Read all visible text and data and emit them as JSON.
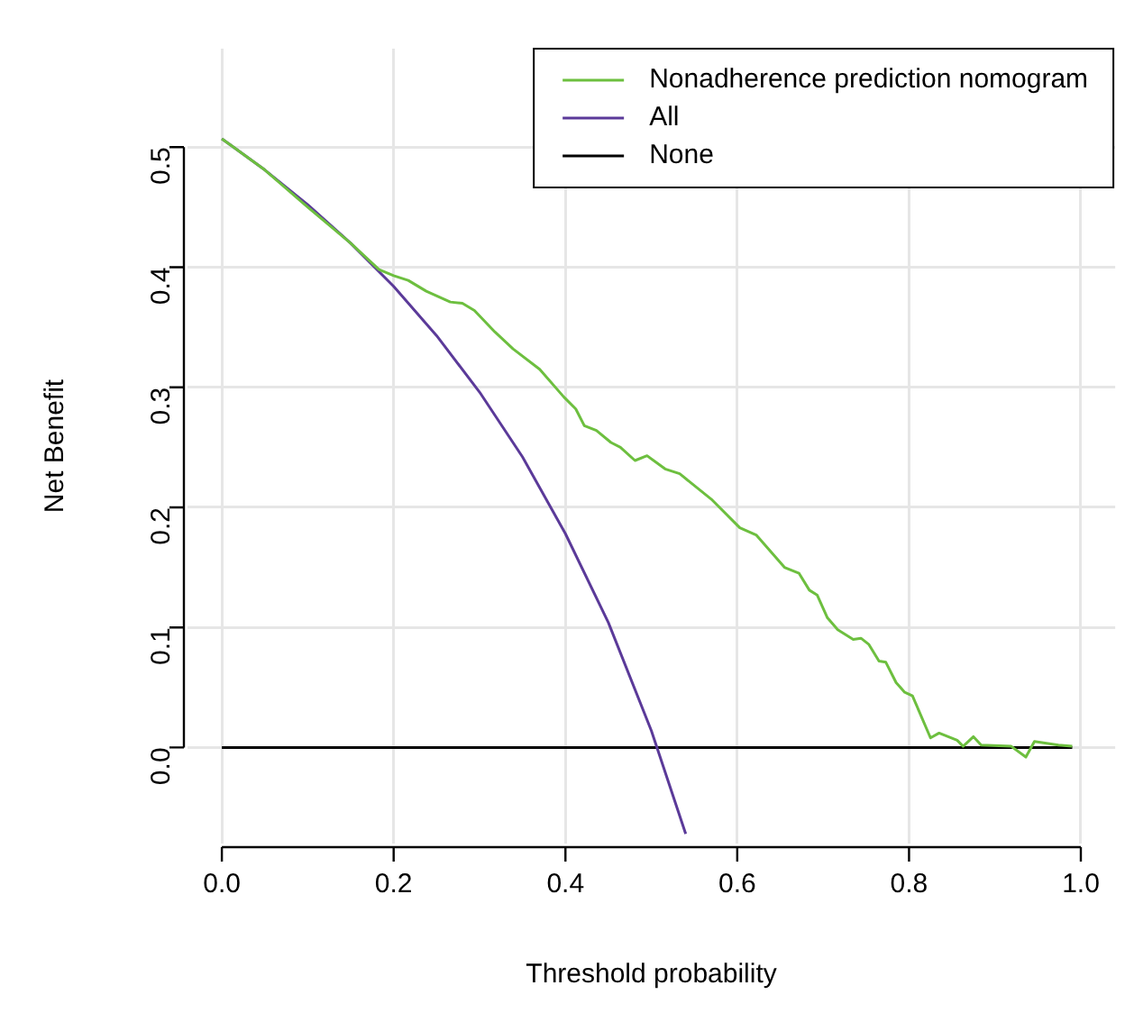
{
  "chart_data": {
    "type": "line",
    "xlabel": "Threshold probability",
    "ylabel": "Net Benefit",
    "xlim": [
      -0.04,
      1.04
    ],
    "ylim": [
      -0.08,
      0.582
    ],
    "xticks": [
      {
        "value": 0,
        "label": "0.0"
      },
      {
        "value": 0.2,
        "label": "0.2"
      },
      {
        "value": 0.4,
        "label": "0.4"
      },
      {
        "value": 0.6,
        "label": "0.6"
      },
      {
        "value": 0.8,
        "label": "0.8"
      },
      {
        "value": 1,
        "label": "1.0"
      }
    ],
    "yticks": [
      {
        "value": 0,
        "label": "0.0"
      },
      {
        "value": 0.1,
        "label": "0.1"
      },
      {
        "value": 0.2,
        "label": "0.2"
      },
      {
        "value": 0.3,
        "label": "0.3"
      },
      {
        "value": 0.4,
        "label": "0.4"
      },
      {
        "value": 0.5,
        "label": "0.5"
      }
    ],
    "grid": true,
    "legend": "top right",
    "marker": "none",
    "line_style": "solid",
    "series": [
      {
        "name": "Nonadherence prediction nomogram",
        "color": "#6dbf3f",
        "x": [
          0,
          0.05,
          0.1,
          0.15,
          0.183,
          0.2,
          0.217,
          0.238,
          0.266,
          0.28,
          0.294,
          0.318,
          0.339,
          0.37,
          0.398,
          0.412,
          0.422,
          0.436,
          0.453,
          0.464,
          0.481,
          0.495,
          0.516,
          0.533,
          0.571,
          0.603,
          0.622,
          0.655,
          0.672,
          0.684,
          0.693,
          0.705,
          0.717,
          0.735,
          0.744,
          0.753,
          0.765,
          0.773,
          0.785,
          0.795,
          0.804,
          0.825,
          0.835,
          0.856,
          0.863,
          0.875,
          0.884,
          0.919,
          0.936,
          0.946,
          0.974,
          0.99
        ],
        "values": [
          0.507,
          0.481,
          0.45,
          0.42,
          0.398,
          0.393,
          0.389,
          0.38,
          0.371,
          0.37,
          0.364,
          0.346,
          0.332,
          0.315,
          0.292,
          0.282,
          0.268,
          0.264,
          0.254,
          0.25,
          0.239,
          0.243,
          0.232,
          0.228,
          0.206,
          0.183,
          0.177,
          0.15,
          0.145,
          0.131,
          0.127,
          0.108,
          0.098,
          0.09,
          0.091,
          0.086,
          0.072,
          0.071,
          0.054,
          0.046,
          0.043,
          0.008,
          0.012,
          0.006,
          0.001,
          0.009,
          0.002,
          0.001,
          -0.008,
          0.005,
          0.002,
          0.001
        ]
      },
      {
        "name": "All",
        "color": "#5b3a99",
        "x": [
          0,
          0.05,
          0.1,
          0.15,
          0.2,
          0.25,
          0.3,
          0.35,
          0.4,
          0.45,
          0.5,
          0.54
        ],
        "values": [
          0.507,
          0.481,
          0.452,
          0.42,
          0.384,
          0.343,
          0.296,
          0.242,
          0.178,
          0.104,
          0.014,
          -0.072
        ]
      },
      {
        "name": "None",
        "color": "#000000",
        "x": [
          0,
          0.99
        ],
        "values": [
          0,
          0
        ]
      }
    ]
  }
}
